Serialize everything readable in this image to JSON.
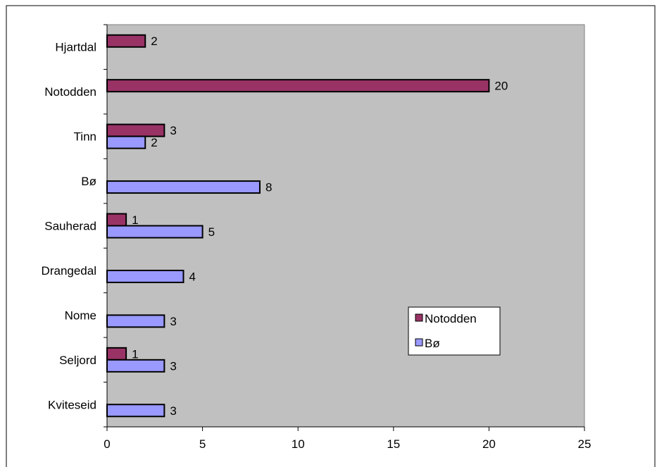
{
  "chart_data": {
    "type": "bar",
    "orientation": "horizontal",
    "title": "",
    "xlabel": "",
    "ylabel": "",
    "categories": [
      "Hjartdal",
      "Notodden",
      "Tinn",
      "Bø",
      "Sauherad",
      "Drangedal",
      "Nome",
      "Seljord",
      "Kviteseid"
    ],
    "series": [
      {
        "name": "Notodden",
        "color": "#993366",
        "values": [
          2,
          20,
          3,
          null,
          1,
          null,
          null,
          1,
          null
        ]
      },
      {
        "name": "Bø",
        "color": "#9999ff",
        "values": [
          null,
          null,
          2,
          8,
          5,
          4,
          3,
          3,
          3
        ]
      }
    ],
    "xlim": [
      0,
      25
    ],
    "xticks": [
      0,
      5,
      10,
      15,
      20,
      25
    ],
    "grid": false,
    "plot_background": "#c0c0c0",
    "legend_position": "right-middle",
    "data_labels": true
  }
}
